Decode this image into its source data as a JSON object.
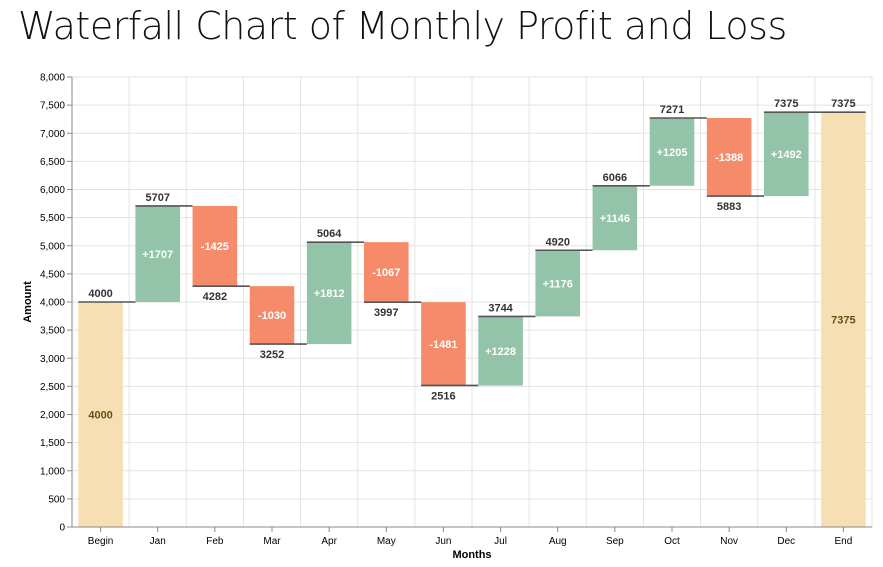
{
  "title": "Waterfall Chart of Monthly Profit and Loss",
  "colors": {
    "total": "#f7dfb4",
    "increase": "#93c3a8",
    "decrease": "#f58b6a",
    "connector": "#555555",
    "grid": "#e3e3e3",
    "total_text": "#6b4e16"
  },
  "chart_data": {
    "type": "waterfall",
    "xlabel": "Months",
    "ylabel": "Amount",
    "ylim": [
      0,
      8000
    ],
    "yticks": [
      0,
      500,
      1000,
      1500,
      2000,
      2500,
      3000,
      3500,
      4000,
      4500,
      5000,
      5500,
      6000,
      6500,
      7000,
      7500,
      8000
    ],
    "ytick_labels": [
      "0",
      "500",
      "1,000",
      "1,500",
      "2,000",
      "2,500",
      "3,000",
      "3,500",
      "4,000",
      "4,500",
      "5,000",
      "5,500",
      "6,000",
      "6,500",
      "7,000",
      "7,500",
      "8,000"
    ],
    "grid": true,
    "steps": [
      {
        "category": "Begin",
        "kind": "total",
        "value": 4000,
        "label": "4000",
        "total_label": "4000"
      },
      {
        "category": "Jan",
        "kind": "delta",
        "start": 4000,
        "end": 5707,
        "label": "+1707",
        "total_label": "5707"
      },
      {
        "category": "Feb",
        "kind": "delta",
        "start": 5707,
        "end": 4282,
        "label": "-1425",
        "total_label": "4282"
      },
      {
        "category": "Mar",
        "kind": "delta",
        "start": 4282,
        "end": 3252,
        "label": "-1030",
        "total_label": "3252"
      },
      {
        "category": "Apr",
        "kind": "delta",
        "start": 3252,
        "end": 5064,
        "label": "+1812",
        "total_label": "5064"
      },
      {
        "category": "May",
        "kind": "delta",
        "start": 5064,
        "end": 3997,
        "label": "-1067",
        "total_label": "3997"
      },
      {
        "category": "Jun",
        "kind": "delta",
        "start": 3997,
        "end": 2516,
        "label": "-1481",
        "total_label": "2516"
      },
      {
        "category": "Jul",
        "kind": "delta",
        "start": 2516,
        "end": 3744,
        "label": "+1228",
        "total_label": "3744"
      },
      {
        "category": "Aug",
        "kind": "delta",
        "start": 3744,
        "end": 4920,
        "label": "+1176",
        "total_label": "4920"
      },
      {
        "category": "Sep",
        "kind": "delta",
        "start": 4920,
        "end": 6066,
        "label": "+1146",
        "total_label": "6066"
      },
      {
        "category": "Oct",
        "kind": "delta",
        "start": 6066,
        "end": 7271,
        "label": "+1205",
        "total_label": "7271"
      },
      {
        "category": "Nov",
        "kind": "delta",
        "start": 7271,
        "end": 5883,
        "label": "-1388",
        "total_label": "5883"
      },
      {
        "category": "Dec",
        "kind": "delta",
        "start": 5883,
        "end": 7375,
        "label": "+1492",
        "total_label": "7375"
      },
      {
        "category": "End",
        "kind": "total",
        "value": 7375,
        "label": "7375",
        "total_label": "7375"
      }
    ]
  }
}
